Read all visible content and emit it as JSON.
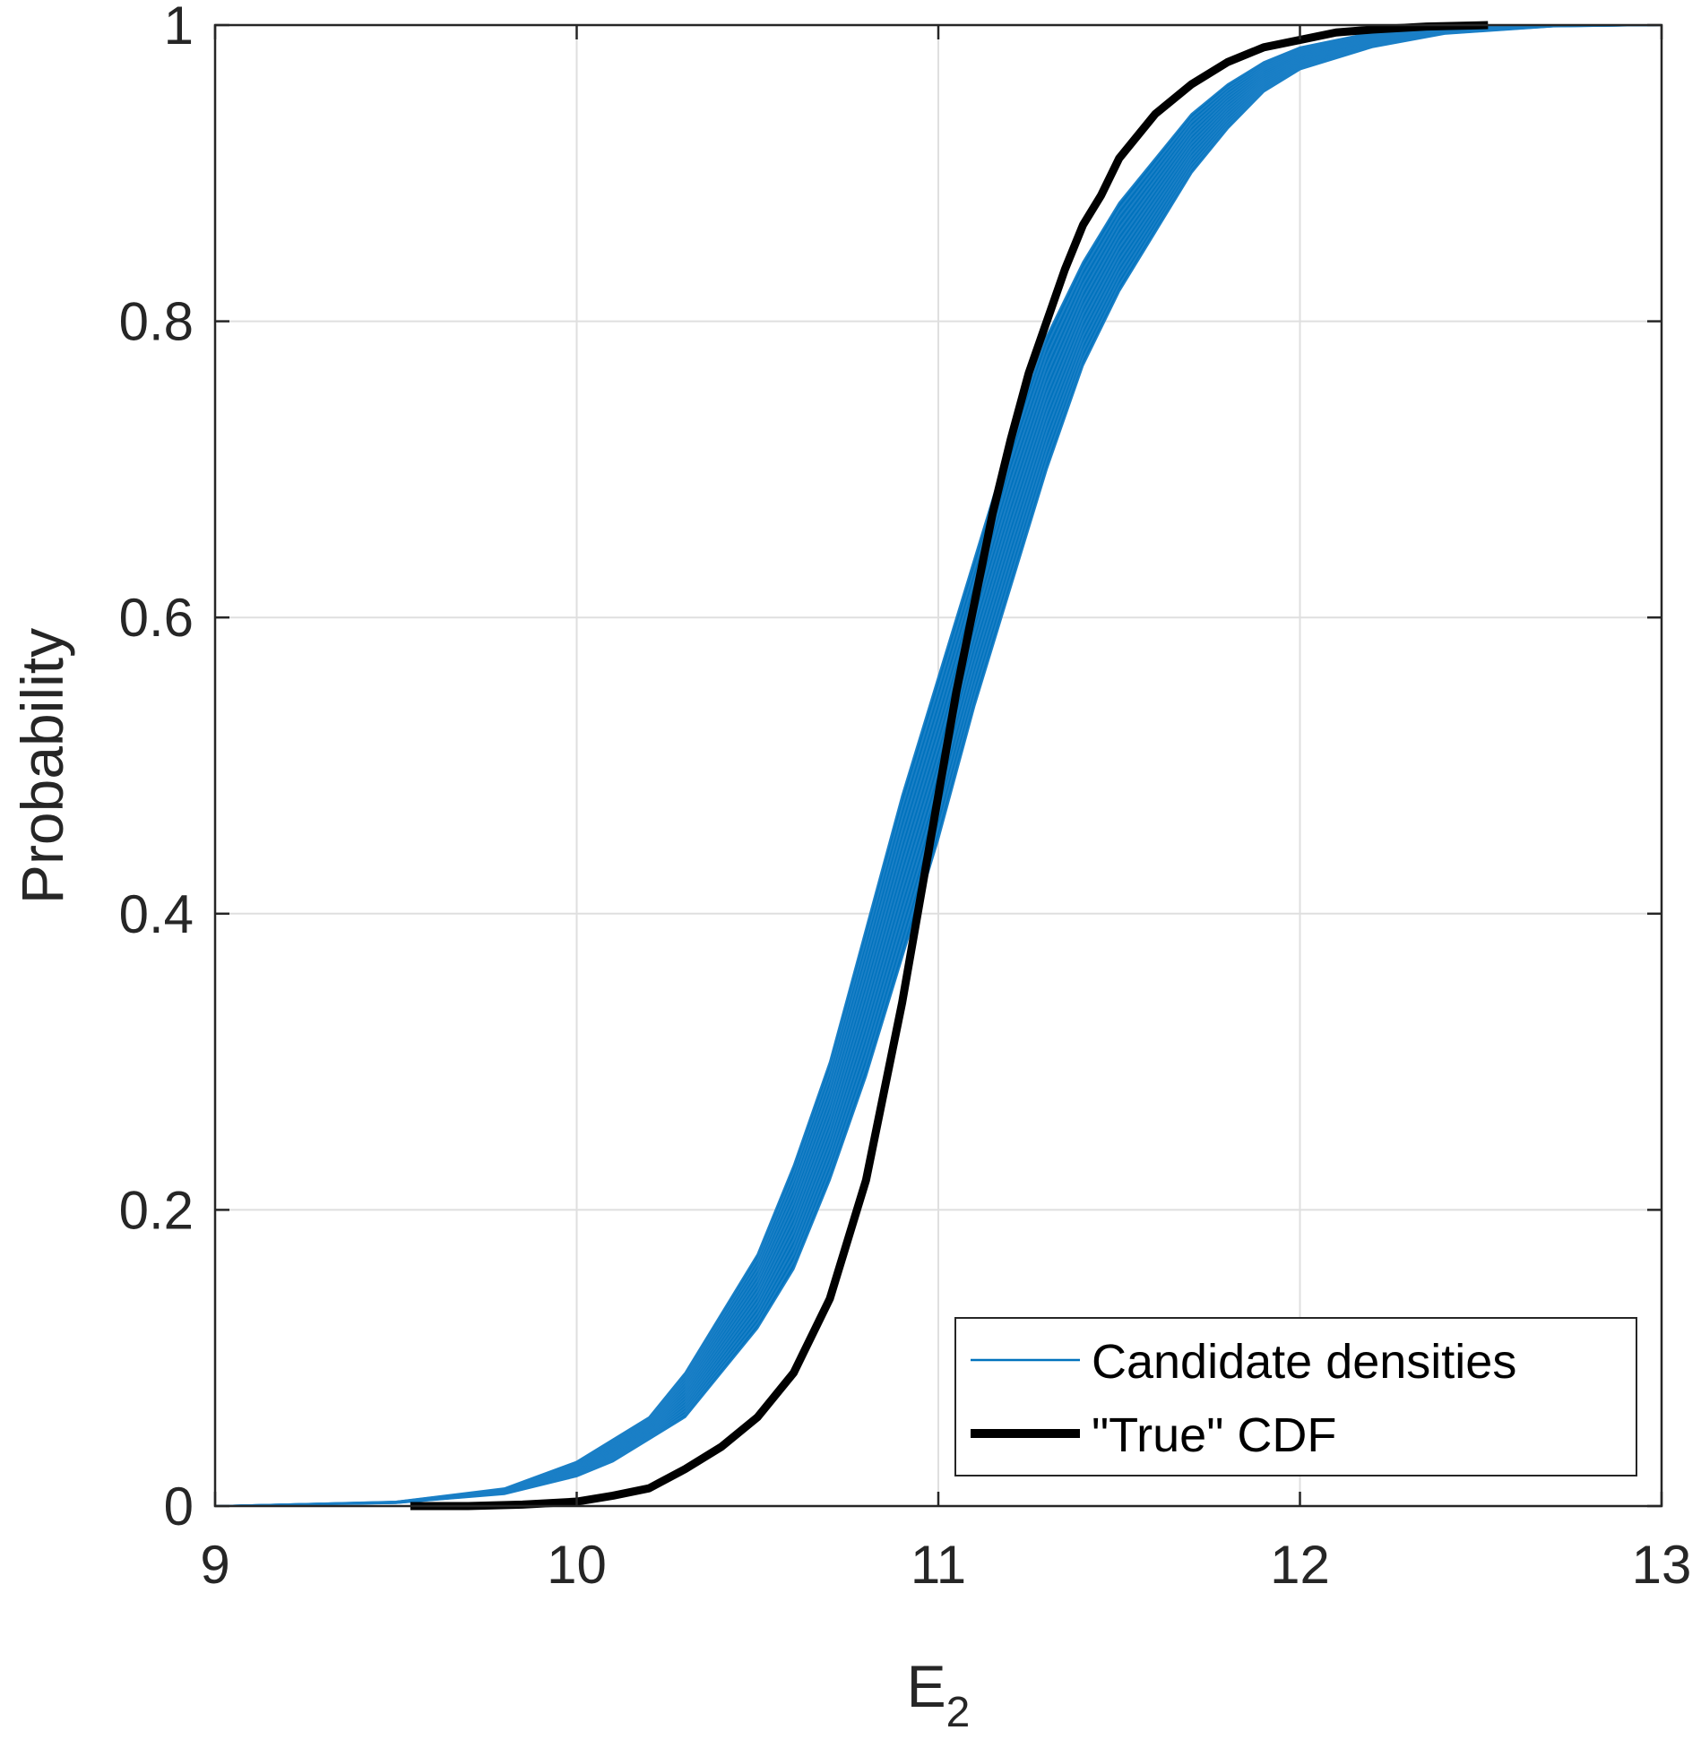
{
  "chart_data": {
    "type": "line",
    "title": "",
    "xlabel": "E",
    "xlabel_subscript": "2",
    "ylabel": "Probability",
    "xlim": [
      9,
      13
    ],
    "ylim": [
      0,
      1
    ],
    "xticks": [
      9,
      10,
      11,
      12,
      13
    ],
    "xtick_labels": [
      "9",
      "10",
      "11",
      "12",
      "13"
    ],
    "yticks": [
      0,
      0.2,
      0.4,
      0.6,
      0.8,
      1
    ],
    "ytick_labels": [
      "0",
      "0.2",
      "0.4",
      "0.6",
      "0.8",
      "1"
    ],
    "grid": true,
    "legend_position": "bottom-right",
    "series": [
      {
        "name": "Candidate densities",
        "color": "#0072BD",
        "style": "band of thin lines",
        "lower": {
          "x": [
            9.0,
            9.5,
            9.8,
            10.0,
            10.1,
            10.2,
            10.3,
            10.4,
            10.5,
            10.6,
            10.7,
            10.8,
            10.9,
            11.0,
            11.1,
            11.2,
            11.3,
            11.4,
            11.5,
            11.6,
            11.7,
            11.8,
            11.9,
            12.0,
            12.2,
            12.4,
            12.7,
            13.0
          ],
          "y": [
            0.0,
            0.002,
            0.008,
            0.02,
            0.03,
            0.045,
            0.06,
            0.09,
            0.12,
            0.16,
            0.22,
            0.29,
            0.37,
            0.45,
            0.54,
            0.62,
            0.7,
            0.77,
            0.82,
            0.86,
            0.9,
            0.93,
            0.955,
            0.97,
            0.985,
            0.994,
            0.999,
            1.0
          ]
        },
        "upper": {
          "x": [
            9.0,
            9.5,
            9.8,
            10.0,
            10.1,
            10.2,
            10.3,
            10.4,
            10.5,
            10.6,
            10.7,
            10.8,
            10.9,
            11.0,
            11.1,
            11.2,
            11.3,
            11.4,
            11.5,
            11.6,
            11.7,
            11.8,
            11.9,
            12.0,
            12.2,
            12.4,
            12.7,
            13.0
          ],
          "y": [
            0.0,
            0.003,
            0.012,
            0.03,
            0.045,
            0.06,
            0.09,
            0.13,
            0.17,
            0.23,
            0.3,
            0.39,
            0.48,
            0.56,
            0.64,
            0.72,
            0.79,
            0.84,
            0.88,
            0.91,
            0.94,
            0.96,
            0.975,
            0.985,
            0.995,
            0.998,
            1.0,
            1.0
          ]
        }
      },
      {
        "name": "\"True\" CDF",
        "color": "#000000",
        "style": "thick line",
        "x": [
          9.54,
          9.7,
          9.85,
          10.0,
          10.1,
          10.2,
          10.3,
          10.4,
          10.5,
          10.6,
          10.7,
          10.75,
          10.8,
          10.85,
          10.9,
          10.95,
          11.0,
          11.05,
          11.1,
          11.15,
          11.2,
          11.25,
          11.3,
          11.35,
          11.4,
          11.45,
          11.5,
          11.6,
          11.7,
          11.8,
          11.9,
          12.0,
          12.1,
          12.2,
          12.35,
          12.52
        ],
        "y": [
          0.0,
          0.0,
          0.001,
          0.003,
          0.007,
          0.012,
          0.025,
          0.04,
          0.06,
          0.09,
          0.14,
          0.18,
          0.22,
          0.28,
          0.34,
          0.41,
          0.48,
          0.55,
          0.61,
          0.67,
          0.72,
          0.765,
          0.8,
          0.835,
          0.865,
          0.885,
          0.91,
          0.94,
          0.96,
          0.975,
          0.985,
          0.99,
          0.995,
          0.997,
          0.999,
          1.0
        ]
      }
    ]
  }
}
